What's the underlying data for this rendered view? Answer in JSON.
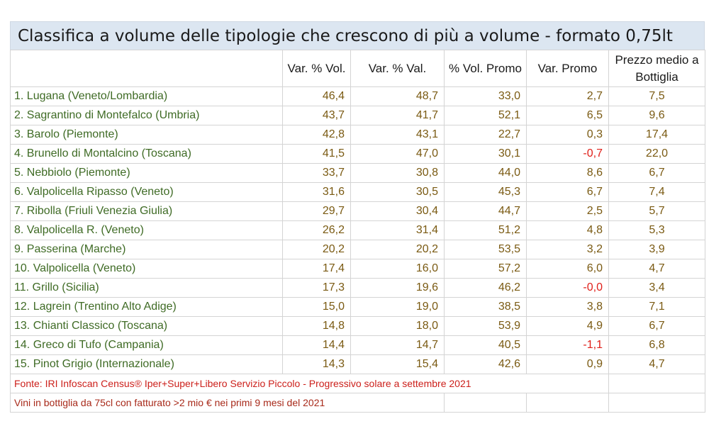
{
  "title": "Classifica a volume delle tipologie che crescono di più a volume - formato 0,75lt",
  "headers": {
    "name": "",
    "var_vol": "Var. % Vol.",
    "var_val": "Var. % Val.",
    "vol_promo": "% Vol. Promo",
    "var_promo": "Var. Promo",
    "prezzo": "Prezzo medio a Bottiglia"
  },
  "rows": [
    {
      "name": "1. Lugana (Veneto/Lombardia)",
      "var_vol": "46,4",
      "var_val": "48,7",
      "vol_promo": "33,0",
      "var_promo": "2,7",
      "prezzo": "7,5"
    },
    {
      "name": "2. Sagrantino di Montefalco (Umbria)",
      "var_vol": "43,7",
      "var_val": "41,7",
      "vol_promo": "52,1",
      "var_promo": "6,5",
      "prezzo": "9,6"
    },
    {
      "name": "3. Barolo (Piemonte)",
      "var_vol": "42,8",
      "var_val": "43,1",
      "vol_promo": "22,7",
      "var_promo": "0,3",
      "prezzo": "17,4"
    },
    {
      "name": "4. Brunello di Montalcino (Toscana)",
      "var_vol": "41,5",
      "var_val": "47,0",
      "vol_promo": "30,1",
      "var_promo": "-0,7",
      "prezzo": "22,0"
    },
    {
      "name": "5. Nebbiolo (Piemonte)",
      "var_vol": "33,7",
      "var_val": "30,8",
      "vol_promo": "44,0",
      "var_promo": "8,6",
      "prezzo": "6,7"
    },
    {
      "name": "6. Valpolicella Ripasso (Veneto)",
      "var_vol": "31,6",
      "var_val": "30,5",
      "vol_promo": "45,3",
      "var_promo": "6,7",
      "prezzo": "7,4"
    },
    {
      "name": "7. Ribolla (Friuli Venezia Giulia)",
      "var_vol": "29,7",
      "var_val": "30,4",
      "vol_promo": "44,7",
      "var_promo": "2,5",
      "prezzo": "5,7"
    },
    {
      "name": "8. Valpolicella R. (Veneto)",
      "var_vol": "26,2",
      "var_val": "31,4",
      "vol_promo": "51,2",
      "var_promo": "4,8",
      "prezzo": "5,3"
    },
    {
      "name": "9. Passerina (Marche)",
      "var_vol": "20,2",
      "var_val": "20,2",
      "vol_promo": "53,5",
      "var_promo": "3,2",
      "prezzo": "3,9"
    },
    {
      "name": "10. Valpolicella (Veneto)",
      "var_vol": "17,4",
      "var_val": "16,0",
      "vol_promo": "57,2",
      "var_promo": "6,0",
      "prezzo": "4,7"
    },
    {
      "name": "11. Grillo (Sicilia)",
      "var_vol": "17,3",
      "var_val": "19,6",
      "vol_promo": "46,2",
      "var_promo": "-0,0",
      "prezzo": "3,4"
    },
    {
      "name": "12. Lagrein (Trentino Alto Adige)",
      "var_vol": "15,0",
      "var_val": "19,0",
      "vol_promo": "38,5",
      "var_promo": "3,8",
      "prezzo": "7,1"
    },
    {
      "name": "13. Chianti Classico (Toscana)",
      "var_vol": "14,8",
      "var_val": "18,0",
      "vol_promo": "53,9",
      "var_promo": "4,9",
      "prezzo": "6,7"
    },
    {
      "name": "14. Greco di Tufo (Campania)",
      "var_vol": "14,4",
      "var_val": "14,7",
      "vol_promo": "40,5",
      "var_promo": "-1,1",
      "prezzo": "6,8"
    },
    {
      "name": "15. Pinot Grigio (Internazionale)",
      "var_vol": "14,3",
      "var_val": "15,4",
      "vol_promo": "42,6",
      "var_promo": "0,9",
      "prezzo": "4,7"
    }
  ],
  "footnotes": {
    "source": "Fonte: IRI Infoscan Census® Iper+Super+Libero Servizio Piccolo - Progressivo solare a settembre 2021",
    "scope": "Vini in bottiglia da 75cl con fatturato >2 mio € nei primi 9 mesi del 2021"
  },
  "colors": {
    "title_bg": "#dce6f1",
    "name_text": "#3f6b25",
    "number_text": "#7a5a12",
    "negative_text": "#e0201a",
    "footnote_text": "#cc1f1a"
  },
  "chart_data": {
    "type": "table",
    "title": "Classifica a volume delle tipologie che crescono di più a volume - formato 0,75lt",
    "columns": [
      "",
      "Var. % Vol.",
      "Var. % Val.",
      "% Vol. Promo",
      "Var. Promo",
      "Prezzo medio a Bottiglia"
    ],
    "rows": [
      [
        "1. Lugana (Veneto/Lombardia)",
        46.4,
        48.7,
        33.0,
        2.7,
        7.5
      ],
      [
        "2. Sagrantino di Montefalco (Umbria)",
        43.7,
        41.7,
        52.1,
        6.5,
        9.6
      ],
      [
        "3. Barolo (Piemonte)",
        42.8,
        43.1,
        22.7,
        0.3,
        17.4
      ],
      [
        "4. Brunello di Montalcino (Toscana)",
        41.5,
        47.0,
        30.1,
        -0.7,
        22.0
      ],
      [
        "5. Nebbiolo (Piemonte)",
        33.7,
        30.8,
        44.0,
        8.6,
        6.7
      ],
      [
        "6. Valpolicella Ripasso (Veneto)",
        31.6,
        30.5,
        45.3,
        6.7,
        7.4
      ],
      [
        "7. Ribolla (Friuli Venezia Giulia)",
        29.7,
        30.4,
        44.7,
        2.5,
        5.7
      ],
      [
        "8. Valpolicella R. (Veneto)",
        26.2,
        31.4,
        51.2,
        4.8,
        5.3
      ],
      [
        "9. Passerina (Marche)",
        20.2,
        20.2,
        53.5,
        3.2,
        3.9
      ],
      [
        "10. Valpolicella (Veneto)",
        17.4,
        16.0,
        57.2,
        6.0,
        4.7
      ],
      [
        "11. Grillo (Sicilia)",
        17.3,
        19.6,
        46.2,
        -0.0,
        3.4
      ],
      [
        "12. Lagrein (Trentino Alto Adige)",
        15.0,
        19.0,
        38.5,
        3.8,
        7.1
      ],
      [
        "13. Chianti Classico (Toscana)",
        14.8,
        18.0,
        53.9,
        4.9,
        6.7
      ],
      [
        "14. Greco di Tufo (Campania)",
        14.4,
        14.7,
        40.5,
        -1.1,
        6.8
      ],
      [
        "15. Pinot Grigio (Internazionale)",
        14.3,
        15.4,
        42.6,
        0.9,
        4.7
      ]
    ]
  }
}
